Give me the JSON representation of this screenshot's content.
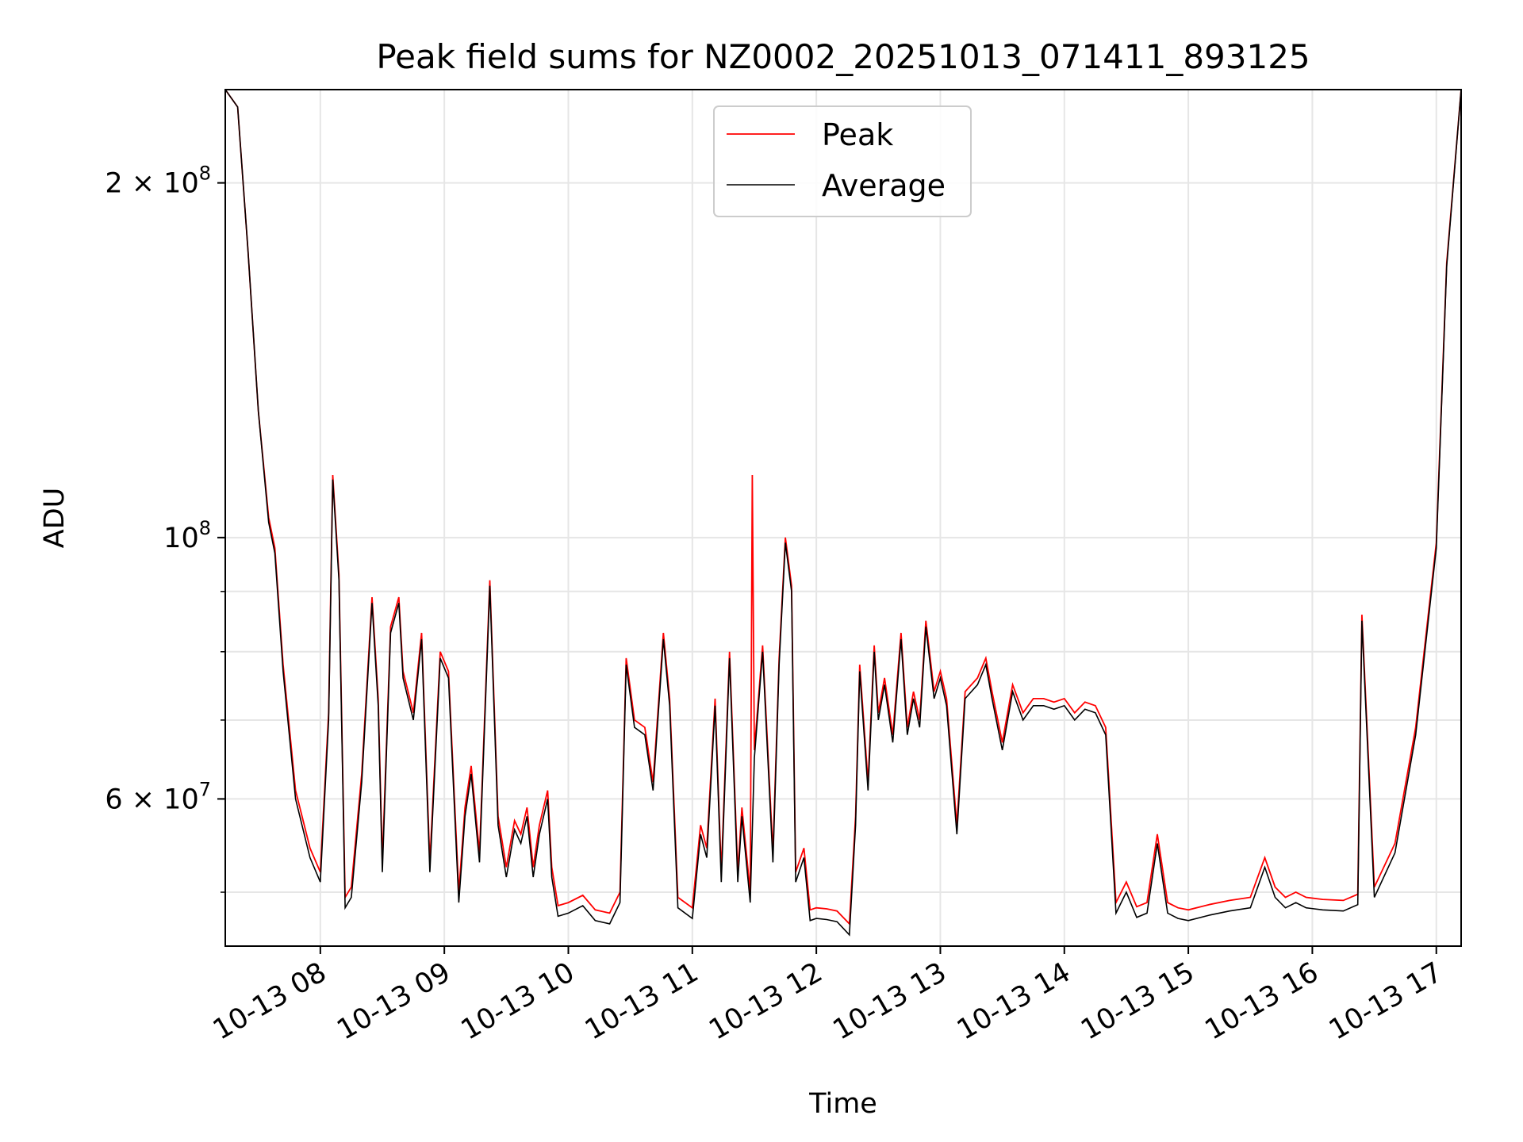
{
  "chart_data": {
    "type": "line",
    "title": "Peak field sums for NZ0002_20251013_071411_893125",
    "xlabel": "Time",
    "ylabel": "ADU",
    "y_scale": "log",
    "grid": true,
    "legend_position": "top-center",
    "xlim": [
      "10-13 07:14",
      "10-13 17:12"
    ],
    "ylim": [
      45000000,
      240000000
    ],
    "x_ticks": [
      {
        "t": "10-13 08:00",
        "label": "10-13 08"
      },
      {
        "t": "10-13 09:00",
        "label": "10-13 09"
      },
      {
        "t": "10-13 10:00",
        "label": "10-13 10"
      },
      {
        "t": "10-13 11:00",
        "label": "10-13 11"
      },
      {
        "t": "10-13 12:00",
        "label": "10-13 12"
      },
      {
        "t": "10-13 13:00",
        "label": "10-13 13"
      },
      {
        "t": "10-13 14:00",
        "label": "10-13 14"
      },
      {
        "t": "10-13 15:00",
        "label": "10-13 15"
      },
      {
        "t": "10-13 16:00",
        "label": "10-13 16"
      },
      {
        "t": "10-13 17:00",
        "label": "10-13 17"
      }
    ],
    "y_ticks": [
      {
        "value": 200000000,
        "base": "2",
        "exp": "8"
      },
      {
        "value": 100000000,
        "base": "",
        "exp": "8"
      },
      {
        "value": 60000000,
        "base": "6",
        "exp": "7"
      }
    ],
    "series": [
      {
        "name": "Average",
        "color": "#000000",
        "x": [
          "10-13 07:14",
          "10-13 07:20",
          "10-13 07:25",
          "10-13 07:30",
          "10-13 07:35",
          "10-13 07:38",
          "10-13 07:42",
          "10-13 07:48",
          "10-13 07:55",
          "10-13 08:00",
          "10-13 08:04",
          "10-13 08:06",
          "10-13 08:09",
          "10-13 08:12",
          "10-13 08:15",
          "10-13 08:20",
          "10-13 08:25",
          "10-13 08:28",
          "10-13 08:30",
          "10-13 08:34",
          "10-13 08:38",
          "10-13 08:40",
          "10-13 08:45",
          "10-13 08:49",
          "10-13 08:53",
          "10-13 08:58",
          "10-13 09:02",
          "10-13 09:07",
          "10-13 09:10",
          "10-13 09:13",
          "10-13 09:17",
          "10-13 09:22",
          "10-13 09:26",
          "10-13 09:30",
          "10-13 09:34",
          "10-13 09:37",
          "10-13 09:40",
          "10-13 09:43",
          "10-13 09:46",
          "10-13 09:50",
          "10-13 09:52",
          "10-13 09:55",
          "10-13 10:00",
          "10-13 10:07",
          "10-13 10:13",
          "10-13 10:20",
          "10-13 10:25",
          "10-13 10:28",
          "10-13 10:32",
          "10-13 10:37",
          "10-13 10:41",
          "10-13 10:46",
          "10-13 10:49",
          "10-13 10:53",
          "10-13 11:00",
          "10-13 11:04",
          "10-13 11:07",
          "10-13 11:11",
          "10-13 11:14",
          "10-13 11:18",
          "10-13 11:22",
          "10-13 11:24",
          "10-13 11:28",
          "10-13 11:30",
          "10-13 11:34",
          "10-13 11:39",
          "10-13 11:42",
          "10-13 11:45",
          "10-13 11:48",
          "10-13 11:50",
          "10-13 11:54",
          "10-13 11:57",
          "10-13 12:00",
          "10-13 12:05",
          "10-13 12:10",
          "10-13 12:16",
          "10-13 12:19",
          "10-13 12:21",
          "10-13 12:25",
          "10-13 12:28",
          "10-13 12:30",
          "10-13 12:33",
          "10-13 12:37",
          "10-13 12:41",
          "10-13 12:44",
          "10-13 12:47",
          "10-13 12:50",
          "10-13 12:53",
          "10-13 12:57",
          "10-13 13:00",
          "10-13 13:03",
          "10-13 13:08",
          "10-13 13:12",
          "10-13 13:18",
          "10-13 13:22",
          "10-13 13:25",
          "10-13 13:30",
          "10-13 13:35",
          "10-13 13:40",
          "10-13 13:45",
          "10-13 13:50",
          "10-13 13:55",
          "10-13 14:00",
          "10-13 14:05",
          "10-13 14:10",
          "10-13 14:15",
          "10-13 14:20",
          "10-13 14:25",
          "10-13 14:30",
          "10-13 14:35",
          "10-13 14:40",
          "10-13 14:45",
          "10-13 14:50",
          "10-13 14:55",
          "10-13 15:00",
          "10-13 15:10",
          "10-13 15:20",
          "10-13 15:30",
          "10-13 15:37",
          "10-13 15:42",
          "10-13 15:47",
          "10-13 15:52",
          "10-13 15:57",
          "10-13 16:05",
          "10-13 16:15",
          "10-13 16:22",
          "10-13 16:24",
          "10-13 16:30",
          "10-13 16:40",
          "10-13 16:50",
          "10-13 17:00",
          "10-13 17:05",
          "10-13 17:12"
        ],
        "values": [
          240000000,
          232000000,
          175000000,
          128000000,
          103000000,
          97000000,
          77000000,
          60000000,
          53500000,
          51000000,
          70000000,
          112000000,
          92000000,
          48500000,
          49500000,
          62000000,
          88000000,
          72000000,
          52000000,
          83000000,
          88000000,
          76000000,
          70000000,
          82000000,
          52000000,
          79000000,
          76000000,
          49000000,
          58000000,
          63000000,
          53000000,
          91000000,
          57000000,
          51500000,
          56500000,
          55000000,
          58000000,
          51500000,
          56000000,
          60000000,
          51500000,
          47700000,
          48000000,
          48700000,
          47300000,
          47000000,
          49000000,
          78000000,
          69000000,
          68000000,
          61000000,
          82000000,
          72000000,
          48500000,
          47500000,
          56000000,
          53500000,
          72000000,
          51000000,
          79000000,
          51000000,
          58000000,
          49000000,
          65000000,
          80000000,
          53000000,
          78000000,
          99000000,
          90000000,
          51000000,
          53500000,
          47300000,
          47500000,
          47400000,
          47200000,
          46000000,
          57000000,
          77000000,
          61000000,
          80000000,
          70000000,
          75000000,
          67000000,
          82000000,
          68000000,
          73000000,
          69000000,
          84000000,
          73000000,
          76000000,
          72000000,
          56000000,
          73000000,
          75000000,
          78000000,
          73000000,
          66000000,
          74000000,
          70000000,
          72000000,
          72000000,
          71500000,
          72000000,
          70000000,
          71500000,
          71000000,
          68000000,
          48000000,
          50000000,
          47600000,
          48000000,
          55000000,
          48000000,
          47500000,
          47300000,
          47800000,
          48200000,
          48500000,
          52500000,
          49500000,
          48500000,
          49000000,
          48500000,
          48300000,
          48200000,
          48800000,
          85000000,
          49500000,
          54000000,
          68000000,
          98000000,
          170000000,
          240000000
        ]
      },
      {
        "name": "Peak",
        "color": "#ff0000",
        "x": [
          "10-13 07:14",
          "10-13 07:20",
          "10-13 07:25",
          "10-13 07:30",
          "10-13 07:35",
          "10-13 07:38",
          "10-13 07:42",
          "10-13 07:48",
          "10-13 07:55",
          "10-13 08:00",
          "10-13 08:04",
          "10-13 08:06",
          "10-13 08:09",
          "10-13 08:12",
          "10-13 08:15",
          "10-13 08:20",
          "10-13 08:25",
          "10-13 08:28",
          "10-13 08:30",
          "10-13 08:34",
          "10-13 08:38",
          "10-13 08:40",
          "10-13 08:45",
          "10-13 08:49",
          "10-13 08:53",
          "10-13 08:58",
          "10-13 09:02",
          "10-13 09:07",
          "10-13 09:10",
          "10-13 09:13",
          "10-13 09:17",
          "10-13 09:22",
          "10-13 09:26",
          "10-13 09:30",
          "10-13 09:34",
          "10-13 09:37",
          "10-13 09:40",
          "10-13 09:43",
          "10-13 09:46",
          "10-13 09:50",
          "10-13 09:52",
          "10-13 09:55",
          "10-13 10:00",
          "10-13 10:07",
          "10-13 10:13",
          "10-13 10:20",
          "10-13 10:25",
          "10-13 10:28",
          "10-13 10:32",
          "10-13 10:37",
          "10-13 10:41",
          "10-13 10:46",
          "10-13 10:49",
          "10-13 10:53",
          "10-13 11:00",
          "10-13 11:04",
          "10-13 11:07",
          "10-13 11:11",
          "10-13 11:14",
          "10-13 11:18",
          "10-13 11:22",
          "10-13 11:24",
          "10-13 11:28",
          "10-13 11:29",
          "10-13 11:30",
          "10-13 11:34",
          "10-13 11:39",
          "10-13 11:42",
          "10-13 11:45",
          "10-13 11:48",
          "10-13 11:50",
          "10-13 11:54",
          "10-13 11:57",
          "10-13 12:00",
          "10-13 12:05",
          "10-13 12:10",
          "10-13 12:16",
          "10-13 12:19",
          "10-13 12:21",
          "10-13 12:25",
          "10-13 12:28",
          "10-13 12:30",
          "10-13 12:33",
          "10-13 12:37",
          "10-13 12:41",
          "10-13 12:44",
          "10-13 12:47",
          "10-13 12:50",
          "10-13 12:53",
          "10-13 12:57",
          "10-13 13:00",
          "10-13 13:03",
          "10-13 13:08",
          "10-13 13:12",
          "10-13 13:18",
          "10-13 13:22",
          "10-13 13:25",
          "10-13 13:30",
          "10-13 13:35",
          "10-13 13:40",
          "10-13 13:45",
          "10-13 13:50",
          "10-13 13:55",
          "10-13 14:00",
          "10-13 14:05",
          "10-13 14:10",
          "10-13 14:15",
          "10-13 14:20",
          "10-13 14:25",
          "10-13 14:30",
          "10-13 14:35",
          "10-13 14:40",
          "10-13 14:45",
          "10-13 14:50",
          "10-13 14:55",
          "10-13 15:00",
          "10-13 15:10",
          "10-13 15:20",
          "10-13 15:30",
          "10-13 15:37",
          "10-13 15:42",
          "10-13 15:47",
          "10-13 15:52",
          "10-13 15:57",
          "10-13 16:05",
          "10-13 16:15",
          "10-13 16:22",
          "10-13 16:24",
          "10-13 16:30",
          "10-13 16:40",
          "10-13 16:50",
          "10-13 17:00",
          "10-13 17:05",
          "10-13 17:12"
        ],
        "values": [
          240000000,
          232000000,
          175000000,
          128000000,
          104000000,
          98000000,
          78000000,
          61000000,
          54500000,
          52000000,
          71000000,
          113000000,
          93000000,
          49500000,
          50500000,
          63000000,
          89000000,
          73000000,
          53000000,
          84000000,
          89000000,
          77000000,
          71000000,
          83000000,
          53000000,
          80000000,
          77000000,
          50000000,
          59000000,
          64000000,
          54000000,
          92000000,
          58000000,
          52500000,
          57500000,
          56000000,
          59000000,
          52500000,
          57000000,
          61000000,
          52500000,
          48700000,
          49000000,
          49700000,
          48300000,
          48000000,
          50000000,
          79000000,
          70000000,
          69000000,
          62000000,
          83000000,
          73000000,
          49500000,
          48500000,
          57000000,
          54500000,
          73000000,
          52000000,
          80000000,
          52000000,
          59000000,
          50000000,
          113000000,
          66000000,
          81000000,
          54000000,
          79000000,
          100000000,
          91000000,
          52000000,
          54500000,
          48300000,
          48500000,
          48400000,
          48200000,
          47000000,
          58000000,
          78000000,
          62000000,
          81000000,
          71000000,
          76000000,
          68000000,
          83000000,
          69000000,
          74000000,
          70000000,
          85000000,
          74000000,
          77000000,
          73000000,
          57000000,
          74000000,
          76000000,
          79000000,
          74000000,
          67000000,
          75000000,
          71000000,
          73000000,
          73000000,
          72500000,
          73000000,
          71000000,
          72500000,
          72000000,
          69000000,
          49000000,
          51000000,
          48600000,
          49000000,
          56000000,
          49000000,
          48500000,
          48300000,
          48800000,
          49200000,
          49500000,
          53500000,
          50500000,
          49500000,
          50000000,
          49500000,
          49300000,
          49200000,
          49800000,
          86000000,
          50500000,
          55000000,
          69000000,
          99000000,
          171000000,
          240000000
        ]
      }
    ]
  }
}
